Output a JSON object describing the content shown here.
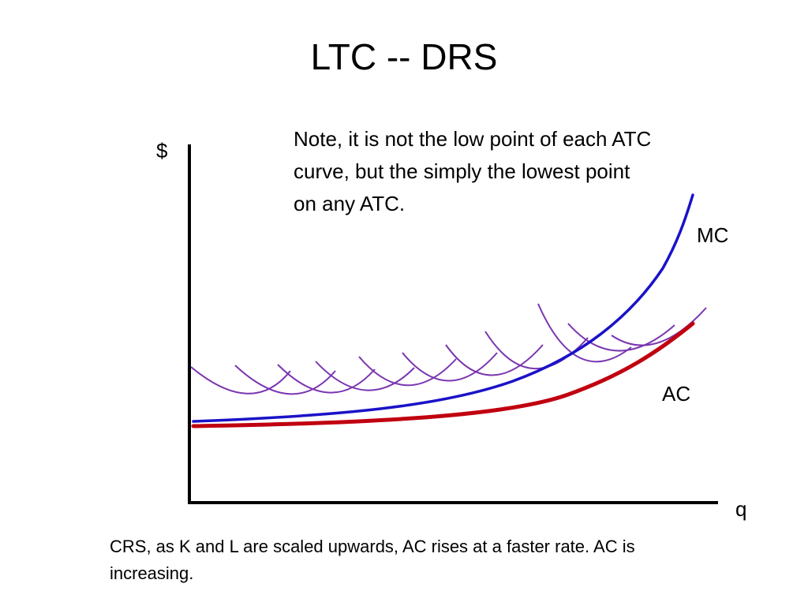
{
  "title": "LTC -- DRS",
  "note": {
    "lines": [
      "Note, it is not the low point of each ATC",
      "curve, but the simply the lowest point",
      "on any ATC."
    ]
  },
  "axes": {
    "y_label": "$",
    "x_label": "q"
  },
  "curves": {
    "mc_label": "MC",
    "ac_label": "AC"
  },
  "footer": {
    "lines": [
      "CRS, as K and L are scaled upwards, AC rises at a faster rate. AC is",
      "increasing."
    ]
  },
  "colors": {
    "axis": "#000000",
    "mc": "#1a12c8",
    "ac": "#c00010",
    "atc": "#7a35b0"
  }
}
